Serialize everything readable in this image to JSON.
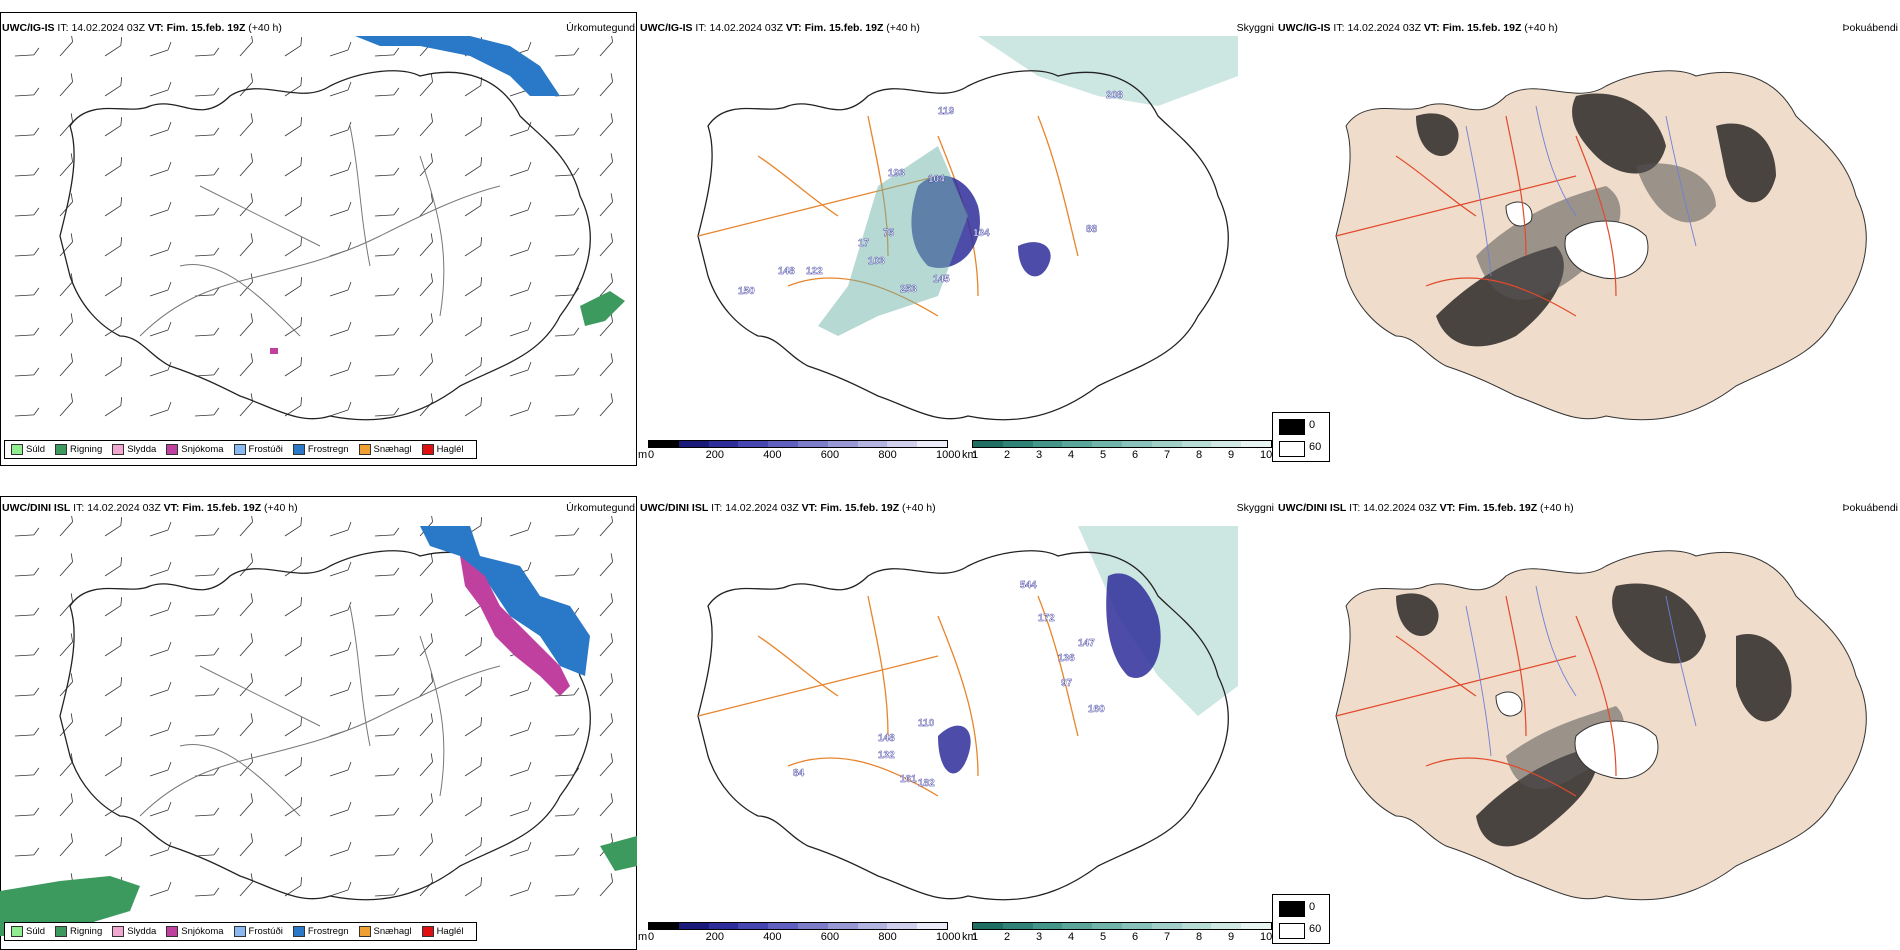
{
  "panels": {
    "top": {
      "precip": {
        "model": "UWC/IG-IS",
        "it_label": "IT:",
        "it": "14.02.2024 03Z",
        "vt_label": "VT:",
        "vt": "Fim. 15.feb. 19Z",
        "lead": "(+40 h)",
        "title": "Úrkomutegund"
      },
      "vis": {
        "model": "UWC/IG-IS",
        "it_label": "IT:",
        "it": "14.02.2024 03Z",
        "vt_label": "VT:",
        "vt": "Fim. 15.feb. 19Z",
        "lead": "(+40 h)",
        "title": "Skyggni"
      },
      "cloud": {
        "model": "UWC/IG-IS",
        "it_label": "IT:",
        "it": "14.02.2024 03Z",
        "vt_label": "VT:",
        "vt": "Fim. 15.feb. 19Z",
        "lead": "(+40 h)",
        "title": "Þokuábendi"
      },
      "vis_labels": [
        "193",
        "104",
        "75",
        "17",
        "103",
        "134",
        "148",
        "122",
        "253",
        "150",
        "145",
        "208",
        "119",
        "88"
      ]
    },
    "bottom": {
      "precip": {
        "model": "UWC/DINI ISL",
        "it_label": "IT:",
        "it": "14.02.2024 03Z",
        "vt_label": "VT:",
        "vt": "Fim. 15.feb. 19Z",
        "lead": "(+40 h)",
        "title": "Úrkomutegund"
      },
      "vis": {
        "model": "UWC/DINI ISL",
        "it_label": "IT:",
        "it": "14.02.2024 03Z",
        "vt_label": "VT:",
        "vt": "Fim. 15.feb. 19Z",
        "lead": "(+40 h)",
        "title": "Skyggni"
      },
      "cloud": {
        "model": "UWC/DINI ISL",
        "it_label": "IT:",
        "it": "14.02.2024 03Z",
        "vt_label": "VT:",
        "vt": "Fim. 15.feb. 19Z",
        "lead": "(+40 h)",
        "title": "Þokuábendi"
      },
      "vis_labels": [
        "544",
        "172",
        "136",
        "97",
        "160",
        "148",
        "132",
        "161",
        "182",
        "147",
        "110",
        "84"
      ]
    }
  },
  "precip_legend": [
    {
      "label": "Súld",
      "color": "#90ee90"
    },
    {
      "label": "Rigning",
      "color": "#3c9a5f"
    },
    {
      "label": "Slydda",
      "color": "#f0a8d0"
    },
    {
      "label": "Snjókoma",
      "color": "#c040a0"
    },
    {
      "label": "Frostúði",
      "color": "#8ab8f0"
    },
    {
      "label": "Frostregn",
      "color": "#2a78c8"
    },
    {
      "label": "Snæhagl",
      "color": "#f0a030"
    },
    {
      "label": "Haglél",
      "color": "#e01010"
    }
  ],
  "height_scale": {
    "unit": "m",
    "ticks": [
      "0",
      "200",
      "400",
      "600",
      "800",
      "1000"
    ],
    "colors": [
      "#000000",
      "#1a1a7a",
      "#2e2e9a",
      "#4646b0",
      "#6060c0",
      "#7c7cc8",
      "#9898d4",
      "#b4b4e0",
      "#d0d0ec",
      "#ececf8"
    ]
  },
  "vis_scale": {
    "unit": "km",
    "ticks": [
      "1",
      "2",
      "3",
      "4",
      "5",
      "6",
      "7",
      "8",
      "9",
      "10"
    ],
    "colors": [
      "#1e6e64",
      "#2f8278",
      "#44958a",
      "#5aa69a",
      "#70b4aa",
      "#88c2ba",
      "#a0d0c8",
      "#b8ddd6",
      "#d0e9e4",
      "#e8f4f2"
    ]
  },
  "cloud_legend": {
    "ticks": [
      "0",
      "60"
    ],
    "colors": [
      "#000000",
      "#ffffff"
    ]
  },
  "colors": {
    "coast": "#222222",
    "roads": "#e8842a",
    "land": "#efdccb",
    "fog_roads": "#e24a2a",
    "fog_water": "#6f7fd6"
  }
}
